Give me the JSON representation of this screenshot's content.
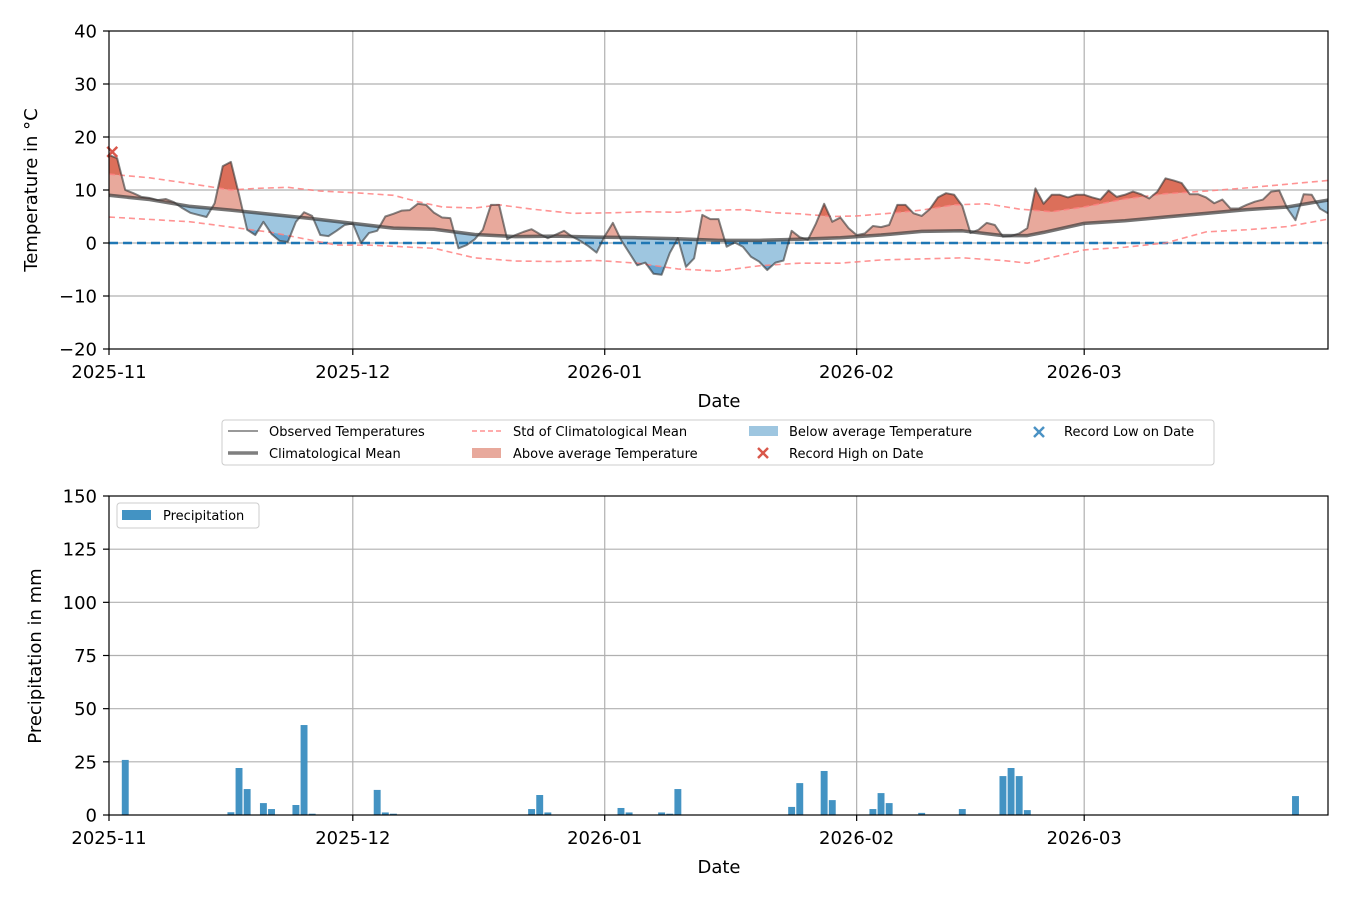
{
  "colors": {
    "observed": "#7f7f7f",
    "mean": "#7f7f7f",
    "std": "#ff8080",
    "above_fill": "#e8a99c",
    "above_std_fill": "#d9654f",
    "below_fill": "#9ec6e0",
    "below_std_fill": "#5c9ccc",
    "zero_line": "#1f77b4",
    "record_high": "#d9574a",
    "record_low": "#4a92c4",
    "precip_bar": "#4393c3",
    "grid": "#b0b0b0"
  },
  "chart_data": [
    {
      "type": "line",
      "xlabel": "Date",
      "ylabel": "Temperature in °C",
      "ylim": [
        -20,
        40
      ],
      "yticks": [
        -20,
        -10,
        0,
        10,
        20,
        30,
        40
      ],
      "ytick_labels": [
        "−20",
        "−10",
        "0",
        "10",
        "20",
        "30",
        "40"
      ],
      "x_range_days": [
        0,
        150
      ],
      "start_date": "2025-11-01",
      "xticks": [
        {
          "day": 0,
          "label": "2025-11"
        },
        {
          "day": 30,
          "label": "2025-12"
        },
        {
          "day": 61,
          "label": "2026-01"
        },
        {
          "day": 92,
          "label": "2026-02"
        },
        {
          "day": 120,
          "label": "2026-03"
        }
      ],
      "grid": true,
      "zero_line": 0,
      "legend_placement": "below-center",
      "legend": [
        {
          "key": "observed",
          "label": "Observed Temperatures"
        },
        {
          "key": "mean",
          "label": "Climatological Mean"
        },
        {
          "key": "std",
          "label": "Std of Climatological Mean"
        },
        {
          "key": "above",
          "label": "Above average Temperature"
        },
        {
          "key": "below",
          "label": "Below average Temperature"
        },
        {
          "key": "record_high",
          "label": "Record High on Date"
        },
        {
          "key": "record_low",
          "label": "Record Low on Date"
        }
      ],
      "observed": [
        16.6,
        16.0,
        10.0,
        9.4,
        8.7,
        8.5,
        8.1,
        8.3,
        7.7,
        6.6,
        5.7,
        5.3,
        4.9,
        7.5,
        14.5,
        15.3,
        9.1,
        2.5,
        1.5,
        4.0,
        1.7,
        0.4,
        0.2,
        4.0,
        5.8,
        5.1,
        1.5,
        1.3,
        2.3,
        3.4,
        3.7,
        0.0,
        1.9,
        2.3,
        5.0,
        5.5,
        6.1,
        6.2,
        7.4,
        7.2,
        5.7,
        4.8,
        4.7,
        -1.0,
        -0.4,
        0.7,
        2.5,
        7.2,
        7.2,
        0.7,
        1.5,
        2.1,
        2.6,
        1.7,
        0.9,
        1.6,
        2.3,
        1.2,
        0.4,
        -0.6,
        -1.8,
        1.3,
        3.8,
        0.6,
        -1.8,
        -4.2,
        -3.7,
        -5.8,
        -6.0,
        -1.9,
        0.9,
        -4.5,
        -2.9,
        5.3,
        4.5,
        4.5,
        -0.7,
        0.1,
        -0.7,
        -2.6,
        -3.5,
        -5.1,
        -3.7,
        -3.3,
        2.3,
        1.1,
        0.6,
        3.7,
        7.4,
        4.0,
        4.8,
        2.8,
        1.5,
        1.8,
        3.2,
        3.0,
        3.4,
        7.2,
        7.2,
        5.6,
        5.1,
        6.4,
        8.6,
        9.4,
        9.1,
        7.0,
        1.9,
        2.5,
        3.8,
        3.4,
        1.2,
        1.3,
        1.8,
        2.8,
        10.3,
        7.4,
        9.1,
        9.1,
        8.6,
        9.1,
        9.1,
        8.6,
        8.2,
        9.9,
        8.7,
        9.1,
        9.7,
        9.2,
        8.4,
        9.7,
        12.2,
        11.8,
        11.3,
        9.2,
        9.2,
        8.6,
        7.5,
        8.2,
        6.5,
        6.5,
        7.2,
        7.8,
        8.2,
        9.7,
        9.9,
        6.5,
        4.3,
        9.2,
        9.1,
        6.5,
        5.6
      ],
      "mean": {
        "days": [
          0,
          5,
          10,
          15,
          20,
          25,
          30,
          35,
          40,
          45,
          50,
          55,
          60,
          65,
          70,
          75,
          80,
          85,
          90,
          95,
          100,
          105,
          110,
          113,
          115,
          120,
          125,
          130,
          135,
          140,
          145,
          150
        ],
        "values": [
          9.0,
          8.2,
          6.9,
          6.2,
          5.4,
          4.6,
          3.7,
          2.8,
          2.6,
          1.6,
          1.2,
          1.3,
          1.1,
          1.0,
          0.8,
          0.5,
          0.5,
          0.7,
          1.0,
          1.5,
          2.2,
          2.3,
          1.4,
          1.4,
          2.0,
          3.7,
          4.2,
          4.9,
          5.6,
          6.3,
          6.8,
          8.1
        ]
      },
      "std_upper": {
        "days": [
          0,
          5,
          10,
          15,
          18,
          22,
          26,
          30,
          35,
          38,
          41,
          45,
          48,
          52,
          57,
          62,
          66,
          70,
          72,
          78,
          82,
          85,
          89,
          92,
          96,
          100,
          104,
          108,
          112,
          116,
          120,
          125,
          130,
          135,
          140,
          145,
          150
        ],
        "values": [
          13.0,
          12.3,
          11.2,
          10.0,
          10.3,
          10.5,
          9.8,
          9.5,
          9.0,
          7.8,
          6.8,
          6.6,
          7.2,
          6.4,
          5.6,
          5.7,
          5.9,
          5.8,
          6.1,
          6.3,
          5.7,
          5.5,
          5.0,
          5.1,
          5.6,
          6.2,
          7.2,
          7.4,
          6.4,
          5.9,
          6.8,
          8.3,
          9.3,
          9.8,
          10.4,
          11.1,
          11.8
        ]
      },
      "std_lower": {
        "days": [
          0,
          10,
          20,
          25,
          28,
          32,
          40,
          45,
          50,
          55,
          60,
          65,
          70,
          75,
          80,
          85,
          90,
          95,
          100,
          105,
          110,
          113,
          120,
          125,
          130,
          135,
          140,
          145,
          150
        ],
        "values": [
          4.9,
          4.0,
          2.0,
          0.5,
          -0.4,
          -0.4,
          -1.0,
          -2.8,
          -3.4,
          -3.5,
          -3.3,
          -3.8,
          -4.9,
          -5.3,
          -4.3,
          -3.8,
          -3.8,
          -3.2,
          -3.0,
          -2.8,
          -3.3,
          -3.8,
          -1.3,
          -0.8,
          0.0,
          2.1,
          2.5,
          3.1,
          4.5
        ]
      },
      "record_high": [
        {
          "day": 0.4,
          "value": 17.2
        }
      ],
      "record_low": []
    },
    {
      "type": "bar",
      "xlabel": "Date",
      "ylabel": "Precipitation in mm",
      "ylim": [
        0,
        150
      ],
      "yticks": [
        0,
        25,
        50,
        75,
        100,
        125,
        150
      ],
      "ytick_labels": [
        "0",
        "25",
        "50",
        "75",
        "100",
        "125",
        "150"
      ],
      "x_range_days": [
        0,
        150
      ],
      "start_date": "2025-11-01",
      "xticks": [
        {
          "day": 0,
          "label": "2025-11"
        },
        {
          "day": 30,
          "label": "2025-12"
        },
        {
          "day": 61,
          "label": "2026-01"
        },
        {
          "day": 92,
          "label": "2026-02"
        },
        {
          "day": 120,
          "label": "2026-03"
        }
      ],
      "grid": true,
      "legend_placement": "top-left",
      "legend": [
        {
          "key": "precip",
          "label": "Precipitation"
        }
      ],
      "bars": [
        {
          "day": 2,
          "value": 25.9
        },
        {
          "day": 15,
          "value": 1.3
        },
        {
          "day": 16,
          "value": 22.1
        },
        {
          "day": 17,
          "value": 12.2
        },
        {
          "day": 19,
          "value": 5.6
        },
        {
          "day": 20,
          "value": 2.8
        },
        {
          "day": 23,
          "value": 4.7
        },
        {
          "day": 24,
          "value": 42.3
        },
        {
          "day": 25,
          "value": 0.6
        },
        {
          "day": 33,
          "value": 11.8
        },
        {
          "day": 34,
          "value": 1.2
        },
        {
          "day": 35,
          "value": 0.6
        },
        {
          "day": 52,
          "value": 2.8
        },
        {
          "day": 53,
          "value": 9.4
        },
        {
          "day": 54,
          "value": 1.2
        },
        {
          "day": 63,
          "value": 3.3
        },
        {
          "day": 64,
          "value": 1.2
        },
        {
          "day": 68,
          "value": 1.2
        },
        {
          "day": 69,
          "value": 0.6
        },
        {
          "day": 70,
          "value": 12.2
        },
        {
          "day": 84,
          "value": 3.8
        },
        {
          "day": 85,
          "value": 15.0
        },
        {
          "day": 88,
          "value": 20.7
        },
        {
          "day": 89,
          "value": 7.0
        },
        {
          "day": 94,
          "value": 2.8
        },
        {
          "day": 95,
          "value": 10.3
        },
        {
          "day": 96,
          "value": 5.6
        },
        {
          "day": 100,
          "value": 1.0
        },
        {
          "day": 105,
          "value": 2.8
        },
        {
          "day": 110,
          "value": 18.3
        },
        {
          "day": 111,
          "value": 22.1
        },
        {
          "day": 112,
          "value": 18.3
        },
        {
          "day": 113,
          "value": 2.3
        },
        {
          "day": 146,
          "value": 8.9
        }
      ]
    }
  ]
}
